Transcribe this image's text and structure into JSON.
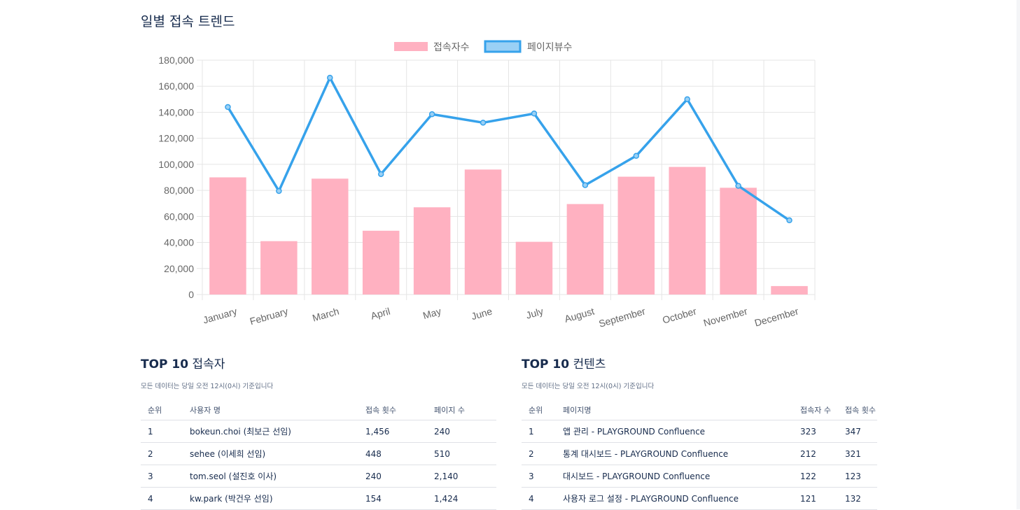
{
  "chart_title": "일별 접속 트렌드",
  "chart_data": {
    "type": "bar",
    "categories": [
      "January",
      "February",
      "March",
      "April",
      "May",
      "June",
      "July",
      "August",
      "September",
      "October",
      "November",
      "December"
    ],
    "series": [
      {
        "name": "접속자수",
        "type": "bar",
        "color": "#ffb1c1",
        "values": [
          90000,
          41000,
          89000,
          49000,
          67000,
          96000,
          40500,
          69500,
          90500,
          98000,
          82000,
          6500
        ]
      },
      {
        "name": "페이지뷰수",
        "type": "line",
        "color": "#36a2eb",
        "fill": "#9ad0f5",
        "values": [
          144000,
          79500,
          166500,
          92500,
          138500,
          132000,
          139000,
          84000,
          106500,
          150000,
          83500,
          57000
        ]
      }
    ],
    "ylim": [
      0,
      180000
    ],
    "yticks": [
      "0",
      "20,000",
      "40,000",
      "60,000",
      "80,000",
      "100,000",
      "120,000",
      "140,000",
      "160,000",
      "180,000"
    ],
    "grid": true,
    "legend": "top-center"
  },
  "top_users": {
    "title_bold": "TOP 10",
    "title_rest": " 접속자",
    "note": "모든 데이터는 당일 오전 12시(0시) 기준입니다",
    "columns": [
      "순위",
      "사용자 명",
      "접속 횟수",
      "페이지 수"
    ],
    "rows": [
      [
        "1",
        "bokeun.choi (최보근 선임)",
        "1,456",
        "240"
      ],
      [
        "2",
        "sehee (이세희 선임)",
        "448",
        "510"
      ],
      [
        "3",
        "tom.seol (설진호 이사)",
        "240",
        "2,140"
      ],
      [
        "4",
        "kw.park (박건우 선임)",
        "154",
        "1,424"
      ]
    ]
  },
  "top_contents": {
    "title_bold": "TOP 10",
    "title_rest": " 컨텐츠",
    "note": "모든 데이터는 당일 오전 12시(0시) 기준입니다",
    "columns": [
      "순위",
      "페이지명",
      "접속자 수",
      "접속 횟수"
    ],
    "rows": [
      [
        "1",
        "앱 관리 - PLAYGROUND Confluence",
        "323",
        "347"
      ],
      [
        "2",
        "통계 대시보드 - PLAYGROUND Confluence",
        "212",
        "321"
      ],
      [
        "3",
        "대시보드 - PLAYGROUND Confluence",
        "122",
        "123"
      ],
      [
        "4",
        "사용자 로그 설정 - PLAYGROUND Confluence",
        "121",
        "132"
      ]
    ]
  }
}
